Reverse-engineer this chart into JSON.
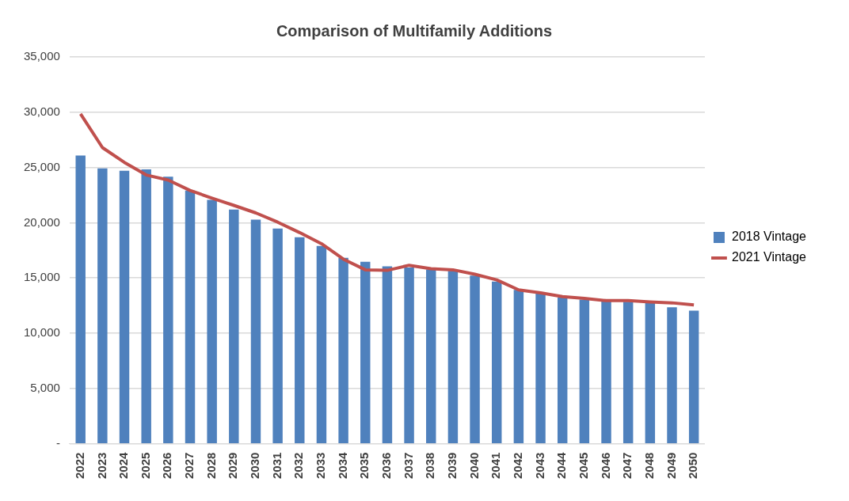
{
  "chart_data": {
    "type": "bar",
    "title": "Comparison of Multifamily Additions",
    "categories": [
      "2022",
      "2023",
      "2024",
      "2025",
      "2026",
      "2027",
      "2028",
      "2029",
      "2030",
      "2031",
      "2032",
      "2033",
      "2034",
      "2035",
      "2036",
      "2037",
      "2038",
      "2039",
      "2040",
      "2041",
      "2042",
      "2043",
      "2044",
      "2045",
      "2046",
      "2047",
      "2048",
      "2049",
      "2050"
    ],
    "series": [
      {
        "name": "2018 Vintage",
        "color": "#4f81bd",
        "values": [
          26090,
          24920,
          24700,
          24820,
          24160,
          22920,
          22080,
          21190,
          20280,
          19470,
          18680,
          17890,
          16830,
          16470,
          16050,
          15940,
          15770,
          15640,
          15210,
          14680,
          13920,
          13610,
          13230,
          13050,
          12900,
          12850,
          12730,
          12350,
          12040
        ]
      },
      {
        "name": "2021 Vintage",
        "type": "line",
        "color": "#c0504d",
        "values": [
          29850,
          26800,
          25460,
          24320,
          23860,
          22920,
          22230,
          21570,
          20890,
          20050,
          19110,
          18100,
          16700,
          15740,
          15690,
          16150,
          15840,
          15740,
          15340,
          14830,
          13920,
          13660,
          13310,
          13160,
          12950,
          12950,
          12830,
          12750,
          12570
        ]
      }
    ],
    "ylim": [
      0,
      35000
    ],
    "yticks": [
      {
        "value": 0,
        "label": "-"
      },
      {
        "value": 5000,
        "label": "5,000"
      },
      {
        "value": 10000,
        "label": "10,000"
      },
      {
        "value": 15000,
        "label": "15,000"
      },
      {
        "value": 20000,
        "label": "20,000"
      },
      {
        "value": 25000,
        "label": "25,000"
      },
      {
        "value": 30000,
        "label": "30,000"
      },
      {
        "value": 35000,
        "label": "35,000"
      }
    ],
    "grid": "y",
    "legend": "right",
    "marker": "none",
    "line_style": "solid"
  }
}
